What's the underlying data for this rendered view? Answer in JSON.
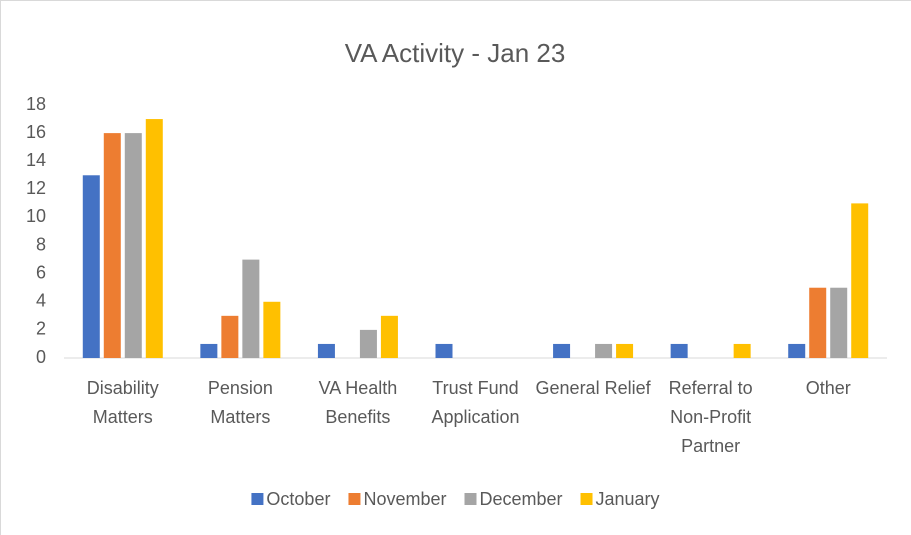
{
  "chart_data": {
    "type": "bar",
    "title": "VA Activity - Jan 23",
    "categories": [
      "Disability Matters",
      "Pension Matters",
      "VA Health Benefits",
      "Trust Fund Application",
      "General Relief",
      "Referral to Non-Profit Partner",
      "Other"
    ],
    "series": [
      {
        "name": "October",
        "color": "#4472c4",
        "values": [
          13,
          1,
          1,
          1,
          1,
          1,
          1
        ]
      },
      {
        "name": "November",
        "color": "#ed7d31",
        "values": [
          16,
          3,
          0,
          0,
          0,
          0,
          5
        ]
      },
      {
        "name": "December",
        "color": "#a5a5a5",
        "values": [
          16,
          7,
          2,
          0,
          1,
          0,
          5
        ]
      },
      {
        "name": "January",
        "color": "#ffc000",
        "values": [
          17,
          4,
          3,
          0,
          1,
          1,
          11
        ]
      }
    ],
    "ylim": [
      0,
      18
    ],
    "yticks": [
      0,
      2,
      4,
      6,
      8,
      10,
      12,
      14,
      16,
      18
    ],
    "grid": false,
    "legend": "bottom"
  }
}
